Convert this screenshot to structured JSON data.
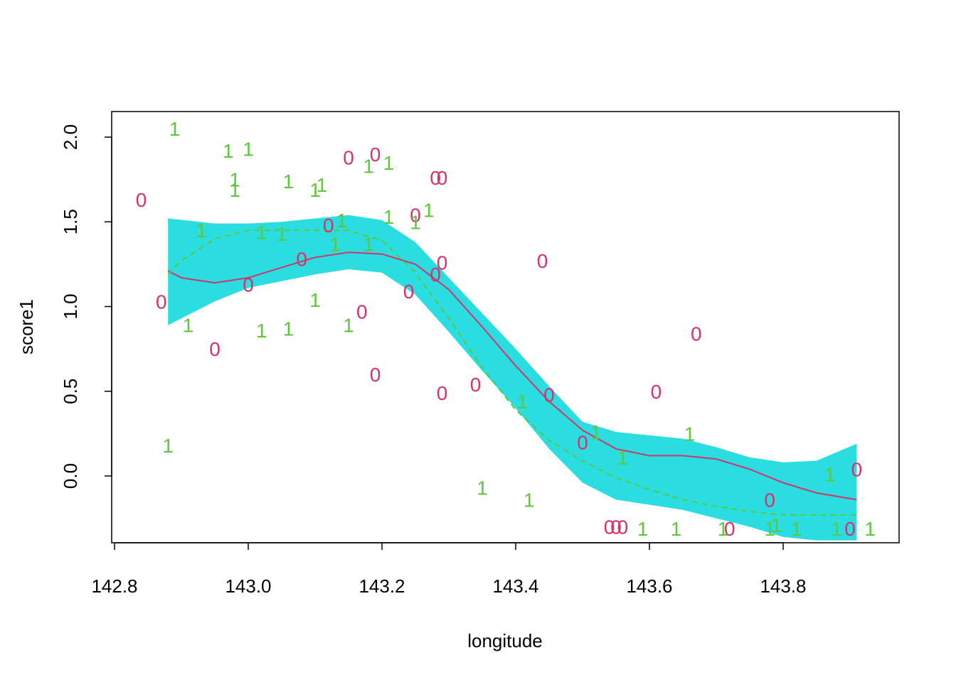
{
  "chart_data": {
    "type": "scatter",
    "title": "",
    "xlabel": "longitude",
    "ylabel": "score1",
    "xlim": [
      142.79,
      143.98
    ],
    "ylim": [
      -0.38,
      2.15
    ],
    "x_ticks": [
      "142.8",
      "143.0",
      "143.2",
      "143.4",
      "143.6",
      "143.8"
    ],
    "y_ticks": [
      "0.0",
      "0.5",
      "1.0",
      "1.5",
      "2.0"
    ],
    "grid": false,
    "legend": "none",
    "colors": {
      "group0": "#D6336C",
      "group1": "#5EC83A",
      "band": "#29DDE0",
      "frame": "#000000"
    },
    "band": {
      "x": [
        142.88,
        142.95,
        143.0,
        143.05,
        143.1,
        143.15,
        143.2,
        143.25,
        143.3,
        143.35,
        143.4,
        143.45,
        143.5,
        143.55,
        143.6,
        143.65,
        143.7,
        143.75,
        143.8,
        143.85,
        143.91
      ],
      "upper": [
        1.52,
        1.49,
        1.49,
        1.5,
        1.52,
        1.54,
        1.51,
        1.38,
        1.17,
        0.96,
        0.75,
        0.53,
        0.32,
        0.26,
        0.24,
        0.22,
        0.17,
        0.11,
        0.08,
        0.09,
        0.19
      ],
      "lower": [
        0.89,
        1.03,
        1.11,
        1.15,
        1.19,
        1.22,
        1.2,
        1.07,
        0.85,
        0.62,
        0.4,
        0.16,
        -0.04,
        -0.14,
        -0.17,
        -0.2,
        -0.25,
        -0.3,
        -0.36,
        -0.38,
        -0.38
      ]
    },
    "series": [
      {
        "name": "0",
        "line": "solid",
        "fit_x": [
          142.88,
          142.9,
          142.95,
          143.0,
          143.05,
          143.1,
          143.15,
          143.2,
          143.25,
          143.3,
          143.35,
          143.4,
          143.45,
          143.5,
          143.55,
          143.6,
          143.65,
          143.7,
          143.75,
          143.8,
          143.85,
          143.91
        ],
        "fit_y": [
          1.21,
          1.17,
          1.14,
          1.17,
          1.23,
          1.29,
          1.32,
          1.31,
          1.25,
          1.1,
          0.88,
          0.65,
          0.44,
          0.27,
          0.16,
          0.12,
          0.12,
          0.1,
          0.04,
          -0.04,
          -0.1,
          -0.14
        ],
        "points_x": [
          142.84,
          142.87,
          142.95,
          143.0,
          143.08,
          143.12,
          143.15,
          143.17,
          143.19,
          143.19,
          143.24,
          143.25,
          143.28,
          143.28,
          143.29,
          143.29,
          143.29,
          143.34,
          143.44,
          143.45,
          143.5,
          143.54,
          143.55,
          143.56,
          143.61,
          143.67,
          143.72,
          143.78,
          143.9,
          143.91
        ],
        "points_y": [
          1.63,
          1.03,
          0.75,
          1.13,
          1.28,
          1.48,
          1.88,
          0.97,
          0.6,
          1.9,
          1.09,
          1.54,
          1.19,
          1.76,
          1.76,
          1.26,
          0.49,
          0.54,
          1.27,
          0.48,
          0.2,
          -0.3,
          -0.3,
          -0.3,
          0.5,
          0.84,
          -0.31,
          -0.14,
          -0.31,
          0.04
        ]
      },
      {
        "name": "1",
        "line": "dashed",
        "fit_x": [
          142.88,
          142.9,
          142.95,
          143.0,
          143.05,
          143.1,
          143.15,
          143.2,
          143.25,
          143.3,
          143.35,
          143.4,
          143.45,
          143.5,
          143.55,
          143.6,
          143.65,
          143.7,
          143.75,
          143.8,
          143.85,
          143.91
        ],
        "fit_y": [
          1.19,
          1.27,
          1.4,
          1.45,
          1.45,
          1.45,
          1.45,
          1.39,
          1.2,
          0.93,
          0.64,
          0.39,
          0.21,
          0.09,
          -0.01,
          -0.08,
          -0.14,
          -0.18,
          -0.21,
          -0.23,
          -0.23,
          -0.23
        ],
        "points_x": [
          142.88,
          142.89,
          142.91,
          142.93,
          142.97,
          142.98,
          142.98,
          143.0,
          143.02,
          143.02,
          143.05,
          143.06,
          143.06,
          143.1,
          143.1,
          143.11,
          143.13,
          143.14,
          143.15,
          143.18,
          143.18,
          143.21,
          143.21,
          143.25,
          143.27,
          143.35,
          143.41,
          143.42,
          143.52,
          143.56,
          143.59,
          143.64,
          143.66,
          143.71,
          143.78,
          143.79,
          143.82,
          143.87,
          143.88,
          143.93
        ],
        "points_y": [
          0.18,
          2.05,
          0.89,
          1.45,
          1.92,
          1.75,
          1.69,
          1.93,
          1.44,
          0.86,
          1.43,
          1.74,
          0.87,
          1.04,
          1.69,
          1.72,
          1.37,
          1.51,
          0.89,
          1.83,
          1.37,
          1.85,
          1.53,
          1.5,
          1.57,
          -0.07,
          0.44,
          -0.14,
          0.26,
          0.11,
          -0.31,
          -0.31,
          0.25,
          -0.31,
          -0.31,
          -0.29,
          -0.31,
          0.01,
          -0.31,
          -0.31
        ]
      }
    ]
  }
}
